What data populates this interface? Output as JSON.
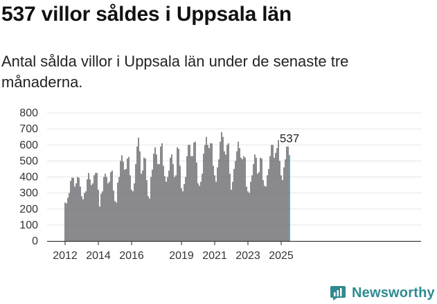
{
  "header": {
    "title": "537 villor såldes i Uppsala län",
    "subtitle": "Antal sålda villor i Uppsala län under de senaste tre månaderna."
  },
  "brand": {
    "name": "Newsworthy",
    "color": "#2e8a8f"
  },
  "colors": {
    "bar": "#6e6d72",
    "highlight": "#2a9aa3"
  },
  "chart_data": {
    "type": "bar",
    "title": "537 villor såldes i Uppsala län",
    "subtitle": "Antal sålda villor i Uppsala län under de senaste tre månaderna.",
    "xlabel": "",
    "ylabel": "",
    "ylim": [
      0,
      800
    ],
    "yticks": [
      0,
      100,
      200,
      300,
      400,
      500,
      600,
      700,
      800
    ],
    "grid": true,
    "x_tick_labels": [
      {
        "label": "2012",
        "year": 2012
      },
      {
        "label": "2014",
        "year": 2014
      },
      {
        "label": "2016",
        "year": 2016
      },
      {
        "label": "2019",
        "year": 2019
      },
      {
        "label": "2021",
        "year": 2021
      },
      {
        "label": "2023",
        "year": 2023
      },
      {
        "label": "2025",
        "year": 2025
      }
    ],
    "start": {
      "year": 2012,
      "month": 1
    },
    "end": {
      "year": 2025,
      "month": 6
    },
    "highlight_label": "537",
    "values": [
      240,
      235,
      270,
      300,
      375,
      395,
      395,
      340,
      360,
      400,
      395,
      340,
      280,
      260,
      300,
      310,
      385,
      425,
      385,
      350,
      360,
      410,
      425,
      425,
      320,
      215,
      295,
      310,
      400,
      420,
      400,
      360,
      370,
      430,
      440,
      315,
      250,
      240,
      365,
      400,
      500,
      535,
      495,
      445,
      450,
      515,
      525,
      410,
      320,
      310,
      360,
      480,
      590,
      645,
      560,
      420,
      440,
      520,
      515,
      380,
      280,
      265,
      400,
      445,
      545,
      585,
      540,
      480,
      480,
      590,
      610,
      470,
      405,
      370,
      400,
      440,
      520,
      540,
      480,
      400,
      410,
      585,
      575,
      470,
      330,
      310,
      355,
      400,
      530,
      600,
      600,
      530,
      530,
      615,
      620,
      490,
      360,
      345,
      370,
      420,
      545,
      600,
      650,
      600,
      580,
      610,
      610,
      470,
      410,
      370,
      460,
      510,
      620,
      680,
      650,
      560,
      540,
      600,
      610,
      420,
      320,
      370,
      450,
      500,
      560,
      620,
      580,
      520,
      510,
      530,
      520,
      340,
      310,
      300,
      370,
      410,
      480,
      540,
      520,
      420,
      430,
      520,
      515,
      380,
      345,
      340,
      410,
      450,
      530,
      600,
      600,
      520,
      550,
      580,
      630,
      500,
      410,
      380,
      460,
      510,
      590,
      590,
      537
    ]
  }
}
